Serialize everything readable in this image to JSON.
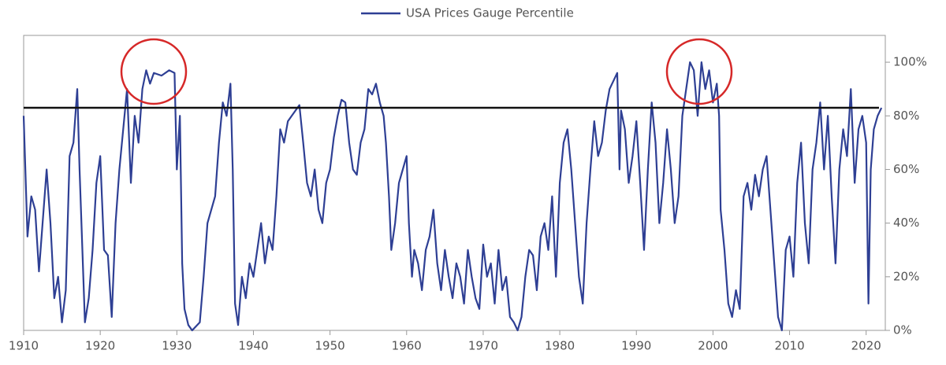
{
  "chart_data": {
    "type": "line",
    "series": [
      {
        "name": "USA Prices Gauge Percentile",
        "color": "#2e3f94",
        "x": [
          1910,
          1910.5,
          1911,
          1911.5,
          1912,
          1913,
          1913.5,
          1914,
          1914.5,
          1915,
          1915.5,
          1916,
          1916.5,
          1917,
          1917.3,
          1918,
          1918.5,
          1919,
          1919.5,
          1920,
          1920.5,
          1921,
          1921.5,
          1922,
          1922.5,
          1923,
          1923.5,
          1924,
          1924.5,
          1925,
          1925.5,
          1926,
          1926.5,
          1927,
          1928,
          1929,
          1929.7,
          1930,
          1930.4,
          1930.7,
          1931,
          1931.5,
          1932,
          1933,
          1933.5,
          1934,
          1935,
          1935.5,
          1936,
          1936.5,
          1937,
          1937.3,
          1937.6,
          1938,
          1938.5,
          1939,
          1939.5,
          1940,
          1940.5,
          1941,
          1941.5,
          1942,
          1942.5,
          1943,
          1943.5,
          1944,
          1944.5,
          1945,
          1946,
          1946.5,
          1947,
          1947.5,
          1948,
          1948.5,
          1949,
          1949.5,
          1950,
          1950.5,
          1951,
          1951.5,
          1952,
          1952.5,
          1953,
          1953.5,
          1954,
          1954.5,
          1955,
          1955.5,
          1956,
          1956.5,
          1957,
          1957.3,
          1957.7,
          1958,
          1958.5,
          1959,
          1959.5,
          1960,
          1960.3,
          1960.7,
          1961,
          1961.5,
          1962,
          1962.5,
          1963,
          1963.5,
          1964,
          1964.5,
          1965,
          1965.5,
          1966,
          1966.5,
          1967,
          1967.5,
          1968,
          1968.5,
          1969,
          1969.5,
          1970,
          1970.5,
          1971,
          1971.5,
          1972,
          1972.5,
          1973,
          1973.5,
          1974,
          1974.5,
          1975,
          1975.5,
          1976,
          1976.5,
          1977,
          1977.5,
          1978,
          1978.5,
          1979,
          1979.5,
          1980,
          1980.5,
          1981,
          1981.5,
          1982,
          1982.5,
          1983,
          1983.5,
          1984,
          1984.5,
          1985,
          1985.5,
          1986,
          1986.5,
          1987,
          1987.5,
          1987.8,
          1988,
          1988.5,
          1989,
          1989.5,
          1990,
          1990.5,
          1991,
          1991.5,
          1992,
          1992.5,
          1993,
          1993.5,
          1994,
          1994.5,
          1995,
          1995.5,
          1996,
          1996.5,
          1997,
          1997.5,
          1998,
          1998.5,
          1999,
          1999.5,
          2000,
          2000.5,
          2000.8,
          2001,
          2001.5,
          2002,
          2002.5,
          2003,
          2003.5,
          2004,
          2004.5,
          2005,
          2005.5,
          2006,
          2006.5,
          2007,
          2007.5,
          2008,
          2008.5,
          2009,
          2009.5,
          2010,
          2010.5,
          2011,
          2011.5,
          2012,
          2012.5,
          2013,
          2013.5,
          2014,
          2014.5,
          2015,
          2015.5,
          2016,
          2016.5,
          2017,
          2017.5,
          2018,
          2018.5,
          2019,
          2019.5,
          2020,
          2020.3,
          2020.6,
          2021,
          2021.5,
          2022
        ],
        "values": [
          80,
          35,
          50,
          45,
          22,
          60,
          40,
          12,
          20,
          3,
          15,
          65,
          70,
          90,
          60,
          3,
          12,
          30,
          55,
          65,
          30,
          28,
          5,
          40,
          60,
          75,
          90,
          55,
          80,
          70,
          90,
          97,
          92,
          96,
          95,
          97,
          96,
          60,
          80,
          25,
          8,
          2,
          0,
          3,
          20,
          40,
          50,
          70,
          85,
          80,
          92,
          60,
          10,
          2,
          20,
          12,
          25,
          20,
          30,
          40,
          25,
          35,
          30,
          50,
          75,
          70,
          78,
          80,
          84,
          70,
          55,
          50,
          60,
          45,
          40,
          55,
          60,
          72,
          80,
          86,
          85,
          70,
          60,
          58,
          70,
          75,
          90,
          88,
          92,
          85,
          80,
          70,
          50,
          30,
          40,
          55,
          60,
          65,
          40,
          20,
          30,
          25,
          15,
          30,
          35,
          45,
          25,
          15,
          30,
          20,
          12,
          25,
          20,
          10,
          30,
          20,
          12,
          8,
          32,
          20,
          25,
          10,
          30,
          15,
          20,
          5,
          3,
          0,
          5,
          20,
          30,
          28,
          15,
          35,
          40,
          30,
          50,
          20,
          55,
          70,
          75,
          60,
          40,
          20,
          10,
          40,
          60,
          78,
          65,
          70,
          82,
          90,
          93,
          96,
          60,
          82,
          75,
          55,
          65,
          78,
          55,
          30,
          60,
          85,
          70,
          40,
          55,
          75,
          60,
          40,
          50,
          80,
          90,
          100,
          97,
          80,
          100,
          90,
          97,
          85,
          92,
          80,
          45,
          30,
          10,
          5,
          15,
          8,
          50,
          55,
          45,
          58,
          50,
          60,
          65,
          45,
          25,
          5,
          0,
          30,
          35,
          20,
          55,
          70,
          40,
          25,
          60,
          70,
          85,
          60,
          80,
          50,
          25,
          60,
          75,
          65,
          90,
          55,
          75,
          80,
          70,
          10,
          60,
          75,
          80,
          83
        ]
      }
    ],
    "reference_line": 83,
    "reference_color": "#111111",
    "xlim": [
      1910,
      2022.5
    ],
    "ylim": [
      0,
      110
    ],
    "xticks": [
      1910,
      1920,
      1930,
      1940,
      1950,
      1960,
      1970,
      1980,
      1990,
      2000,
      2010,
      2020
    ],
    "yticks": [
      {
        "value": 0,
        "label": "0%"
      },
      {
        "value": 20,
        "label": "20%"
      },
      {
        "value": 40,
        "label": "40%"
      },
      {
        "value": 60,
        "label": "60%"
      },
      {
        "value": 80,
        "label": "80%"
      },
      {
        "value": 100,
        "label": "100%"
      }
    ],
    "legend": "top"
  }
}
